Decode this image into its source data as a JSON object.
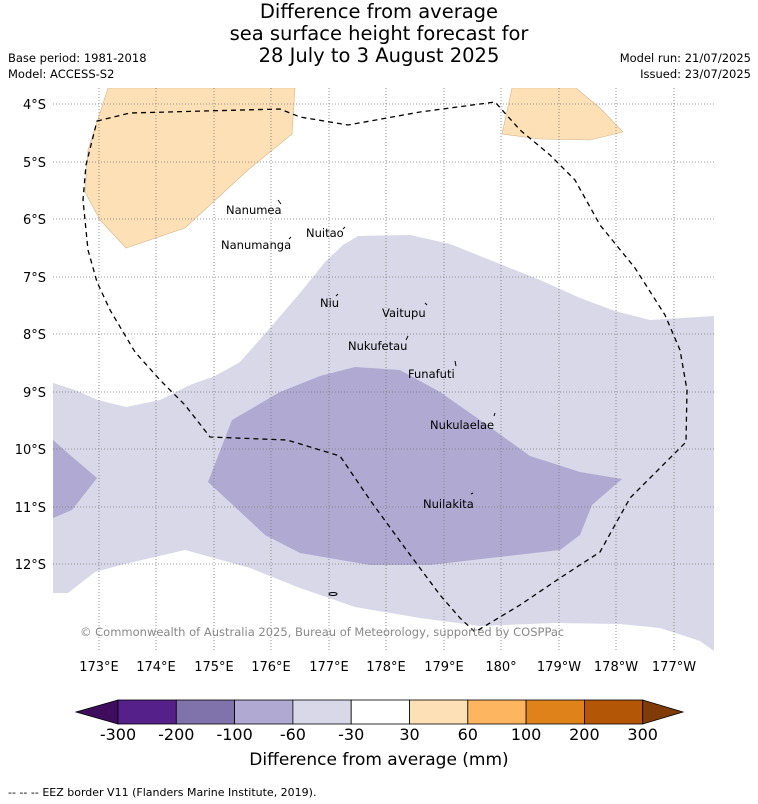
{
  "header": {
    "title_line1": "Difference from average",
    "title_line2": "sea surface height forecast for",
    "title_line3": "28 July to 3 August 2025",
    "base_period": "Base period: 1981-2018",
    "model": "Model: ACCESS-S2",
    "model_run": "Model run: 21/07/2025",
    "issued": "Issued: 23/07/2025"
  },
  "map": {
    "lat_labels": [
      "4°S",
      "5°S",
      "6°S",
      "7°S",
      "8°S",
      "9°S",
      "10°S",
      "11°S",
      "12°S"
    ],
    "lon_labels": [
      "173°E",
      "174°E",
      "175°E",
      "176°E",
      "177°E",
      "178°E",
      "179°E",
      "180°",
      "179°W",
      "178°W",
      "177°W"
    ],
    "islands": [
      "Nanumea",
      "Nanumanga",
      "Nuitao",
      "Niu",
      "Vaitupu",
      "Nukufetau",
      "Funafuti",
      "Nukulaelae",
      "Nuilakita"
    ],
    "copyright": "© Commonwealth of Australia 2025, Bureau of Meteorology, supported by COSPPac",
    "colors": {
      "c_30_60": "#fde0b6",
      "c_m60_m30": "#d8d8e9",
      "c_m100_m60": "#b0aad2"
    }
  },
  "colorbar": {
    "tick_labels": [
      "-300",
      "-200",
      "-100",
      "-60",
      "-30",
      "30",
      "60",
      "100",
      "200",
      "300"
    ],
    "colors": [
      "#3f0d5e",
      "#55208a",
      "#8072aa",
      "#b0aad2",
      "#d8d8e9",
      "#ffffff",
      "#fde0b6",
      "#fdb55f",
      "#e0821a",
      "#b35706",
      "#7f3b08"
    ],
    "title": "Difference from average (mm)"
  },
  "footer": {
    "legend_symbol": "-- -- --",
    "eez_text": "EEZ border V11 (Flanders Marine Institute, 2019)."
  }
}
